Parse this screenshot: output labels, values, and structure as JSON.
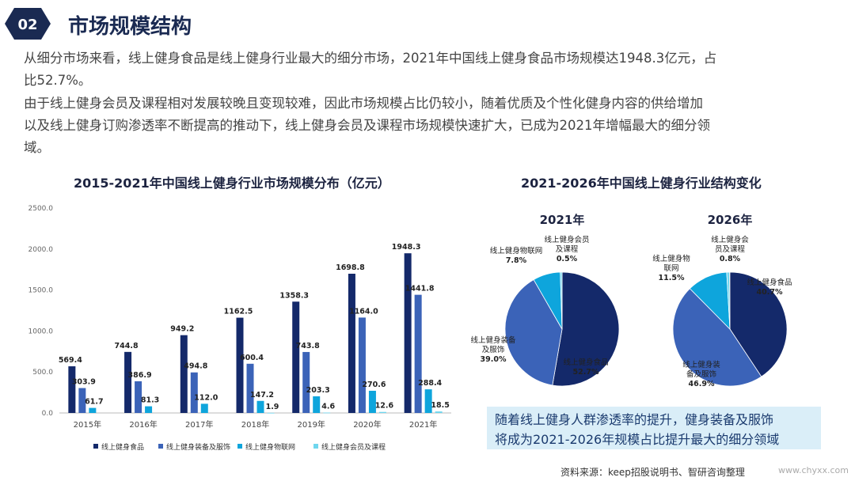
{
  "header": {
    "badge": "02",
    "title": "市场规模结构"
  },
  "paragraphs": {
    "p1a": "从细分市场来看，线上健身食品是线上健身行业最大的细分市场，2021年中国线上健身食品市场规模达1948.3亿元，占",
    "p1b": "比52.7%。",
    "p2a": "由于线上健身会员及课程相对发展较晚且变现较难，因此市场规模占比仍较小，随着优质及个性化健身内容的供给增加",
    "p2b": "以及线上健身订购渗透率不断提高的推动下，线上健身会员及课程市场规模快速扩大，已成为2021年增幅最大的细分领",
    "p2c": "域。"
  },
  "chart_data": [
    {
      "type": "bar",
      "title": "2015-2021年中国线上健身行业市场规模分布（亿元）",
      "categories": [
        "2015年",
        "2016年",
        "2017年",
        "2018年",
        "2019年",
        "2020年",
        "2021年"
      ],
      "ylim": [
        0,
        2500
      ],
      "yticks": [
        "0.0",
        "500.0",
        "1000.0",
        "1500.0",
        "2000.0",
        "2500.0"
      ],
      "series": [
        {
          "name": "线上健身食品",
          "color": "#14296a",
          "values": [
            569.4,
            744.8,
            949.2,
            1162.5,
            1358.3,
            1698.8,
            1948.3
          ]
        },
        {
          "name": "线上健身装备及服饰",
          "color": "#3b63b8",
          "values": [
            303.9,
            386.9,
            494.8,
            600.4,
            743.8,
            1164.0,
            1441.8
          ]
        },
        {
          "name": "线上健身物联网",
          "color": "#0ea5dc",
          "values": [
            61.7,
            81.3,
            112.0,
            147.2,
            203.3,
            270.6,
            288.4
          ]
        },
        {
          "name": "线上健身会员及课程",
          "color": "#6fd6ee",
          "values": [
            null,
            null,
            null,
            1.9,
            4.6,
            12.6,
            18.5
          ]
        }
      ]
    },
    {
      "type": "pie",
      "title": "2021-2026年中国线上健身行业结构变化",
      "pies": [
        {
          "label": "2021年",
          "slices": [
            {
              "name": "线上健身食品",
              "value": "52.7%",
              "pct": 52.7,
              "color": "#14296a"
            },
            {
              "name": "线上健身装备及服饰",
              "value": "39.0%",
              "pct": 39.0,
              "color": "#3b63b8"
            },
            {
              "name": "线上健身物联网",
              "value": "7.8%",
              "pct": 7.8,
              "color": "#0ea5dc"
            },
            {
              "name": "线上健身会员及课程",
              "value": "0.5%",
              "pct": 0.5,
              "color": "#6fd6ee"
            }
          ]
        },
        {
          "label": "2026年",
          "slices": [
            {
              "name": "线上健身食品",
              "value": "40.7%",
              "pct": 40.7,
              "color": "#14296a"
            },
            {
              "name": "线上健身装备及服饰",
              "value": "46.9%",
              "pct": 46.9,
              "color": "#3b63b8"
            },
            {
              "name": "线上健身物联网",
              "value": "11.5%",
              "pct": 11.5,
              "color": "#0ea5dc"
            },
            {
              "name": "线上健身会员及课程",
              "value": "0.8%",
              "pct": 0.8,
              "color": "#6fd6ee"
            }
          ]
        }
      ]
    }
  ],
  "pie_labels": {
    "p2021_food": [
      "线上健身食品",
      "52.7%"
    ],
    "p2021_equip": [
      "线上健身装备",
      "及服饰",
      "39.0%"
    ],
    "p2021_iot": [
      "线上健身物联网",
      "7.8%"
    ],
    "p2021_member": [
      "线上健身会员",
      "及课程",
      "0.5%"
    ],
    "p2026_food": [
      "线上健身食品",
      "40.7%"
    ],
    "p2026_equip": [
      "线上健身装",
      "备及服饰",
      "46.9%"
    ],
    "p2026_iot": [
      "线上健身物",
      "联网",
      "11.5%"
    ],
    "p2026_member": [
      "线上健身会",
      "员及课程",
      "0.8%"
    ]
  },
  "note": {
    "line1": "随着线上健身人群渗透率的提升，健身装备及服饰",
    "line2": "将成为2021-2026年规模占比提升最大的细分领域"
  },
  "source": "资料来源：keep招股说明书、智研咨询整理",
  "site": "www.chyxx.com"
}
